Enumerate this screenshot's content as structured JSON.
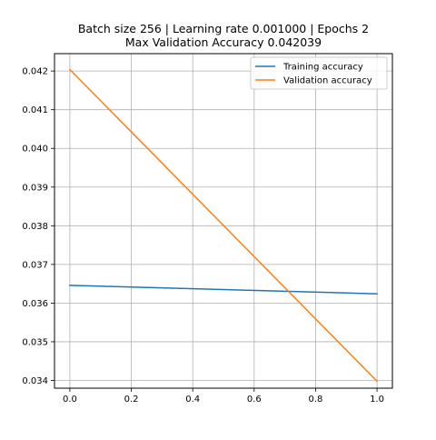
{
  "chart_data": {
    "type": "line",
    "title": "Batch size 256 | Learning rate 0.001000 | Epochs 2",
    "subtitle": "Max Validation Accuracy 0.042039",
    "xlabel": "",
    "ylabel": "",
    "x": [
      0.0,
      1.0
    ],
    "xlim": [
      -0.05,
      1.05
    ],
    "ylim": [
      0.0338,
      0.04245
    ],
    "xticks": [
      0.0,
      0.2,
      0.4,
      0.6,
      0.8,
      1.0
    ],
    "xtick_labels": [
      "0.0",
      "0.2",
      "0.4",
      "0.6",
      "0.8",
      "1.0"
    ],
    "yticks": [
      0.034,
      0.035,
      0.036,
      0.037,
      0.038,
      0.039,
      0.04,
      0.041,
      0.042
    ],
    "ytick_labels": [
      "0.034",
      "0.035",
      "0.036",
      "0.037",
      "0.038",
      "0.039",
      "0.040",
      "0.041",
      "0.042"
    ],
    "grid": true,
    "legend_position": "top-right",
    "series": [
      {
        "name": "Training accuracy",
        "color": "#1f77b4",
        "values": [
          0.03646,
          0.03624
        ]
      },
      {
        "name": "Validation accuracy",
        "color": "#ff7f0e",
        "values": [
          0.042039,
          0.03398
        ]
      }
    ]
  }
}
